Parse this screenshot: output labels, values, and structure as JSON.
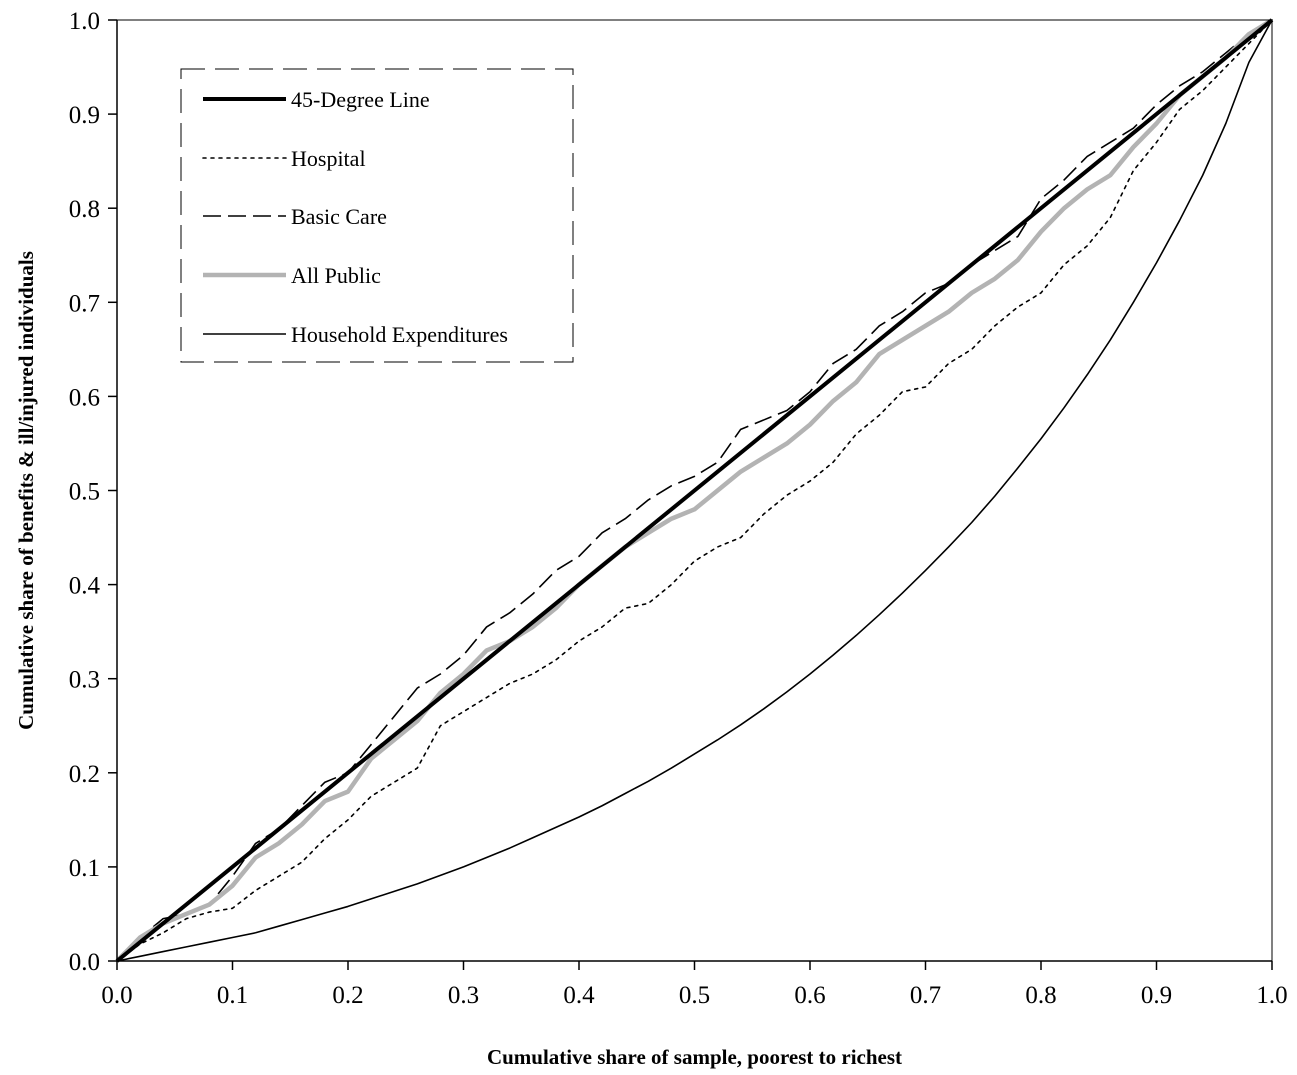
{
  "chart_data": {
    "type": "line",
    "title": "",
    "xlabel": "Cumulative share of sample, poorest to richest",
    "ylabel": "Cumulative share of benefits & ill/injured individuals",
    "xlim": [
      0,
      1
    ],
    "ylim": [
      0,
      1
    ],
    "x_ticks": [
      "0.0",
      "0.1",
      "0.2",
      "0.3",
      "0.4",
      "0.5",
      "0.6",
      "0.7",
      "0.8",
      "0.9",
      "1.0"
    ],
    "y_ticks": [
      "0.0",
      "0.1",
      "0.2",
      "0.3",
      "0.4",
      "0.5",
      "0.6",
      "0.7",
      "0.8",
      "0.9",
      "1.0"
    ],
    "grid": false,
    "legend_position": "top-left",
    "series": [
      {
        "name": "45-Degree Line",
        "style": "solid-thick",
        "color": "#000000",
        "x": [
          0,
          1
        ],
        "y": [
          0,
          1
        ]
      },
      {
        "name": "Hospital",
        "style": "dotted",
        "color": "#000000",
        "x": [
          0,
          0.02,
          0.04,
          0.06,
          0.08,
          0.1,
          0.12,
          0.14,
          0.16,
          0.18,
          0.2,
          0.22,
          0.24,
          0.26,
          0.28,
          0.3,
          0.32,
          0.34,
          0.36,
          0.38,
          0.4,
          0.42,
          0.44,
          0.46,
          0.48,
          0.5,
          0.52,
          0.54,
          0.56,
          0.58,
          0.6,
          0.62,
          0.64,
          0.66,
          0.68,
          0.7,
          0.72,
          0.74,
          0.76,
          0.78,
          0.8,
          0.82,
          0.84,
          0.86,
          0.88,
          0.9,
          0.92,
          0.94,
          0.96,
          0.98,
          1.0
        ],
        "y": [
          0,
          0.018,
          0.03,
          0.045,
          0.052,
          0.056,
          0.075,
          0.09,
          0.105,
          0.13,
          0.15,
          0.175,
          0.19,
          0.205,
          0.25,
          0.265,
          0.28,
          0.295,
          0.305,
          0.32,
          0.34,
          0.355,
          0.375,
          0.38,
          0.4,
          0.425,
          0.44,
          0.45,
          0.475,
          0.495,
          0.51,
          0.53,
          0.56,
          0.58,
          0.605,
          0.61,
          0.635,
          0.65,
          0.675,
          0.695,
          0.71,
          0.74,
          0.76,
          0.79,
          0.84,
          0.87,
          0.905,
          0.925,
          0.95,
          0.975,
          1.0
        ]
      },
      {
        "name": "Basic Care",
        "style": "dashed",
        "color": "#000000",
        "x": [
          0,
          0.02,
          0.04,
          0.06,
          0.08,
          0.1,
          0.12,
          0.14,
          0.16,
          0.18,
          0.2,
          0.22,
          0.24,
          0.26,
          0.28,
          0.3,
          0.32,
          0.34,
          0.36,
          0.38,
          0.4,
          0.42,
          0.44,
          0.46,
          0.48,
          0.5,
          0.52,
          0.54,
          0.56,
          0.58,
          0.6,
          0.62,
          0.64,
          0.66,
          0.68,
          0.7,
          0.72,
          0.74,
          0.76,
          0.78,
          0.8,
          0.82,
          0.84,
          0.86,
          0.88,
          0.9,
          0.92,
          0.94,
          0.96,
          0.98,
          1.0
        ],
        "y": [
          0,
          0.025,
          0.045,
          0.05,
          0.06,
          0.09,
          0.125,
          0.14,
          0.165,
          0.19,
          0.2,
          0.23,
          0.26,
          0.29,
          0.305,
          0.325,
          0.355,
          0.37,
          0.39,
          0.415,
          0.43,
          0.455,
          0.47,
          0.49,
          0.505,
          0.515,
          0.53,
          0.565,
          0.575,
          0.585,
          0.605,
          0.635,
          0.65,
          0.675,
          0.69,
          0.71,
          0.72,
          0.74,
          0.755,
          0.77,
          0.81,
          0.83,
          0.855,
          0.87,
          0.885,
          0.91,
          0.93,
          0.945,
          0.965,
          0.985,
          1.0
        ]
      },
      {
        "name": "All Public",
        "style": "solid-gray-thick",
        "color": "#b3b3b3",
        "x": [
          0,
          0.02,
          0.04,
          0.06,
          0.08,
          0.1,
          0.12,
          0.14,
          0.16,
          0.18,
          0.2,
          0.22,
          0.24,
          0.26,
          0.28,
          0.3,
          0.32,
          0.34,
          0.36,
          0.38,
          0.4,
          0.42,
          0.44,
          0.46,
          0.48,
          0.5,
          0.52,
          0.54,
          0.56,
          0.58,
          0.6,
          0.62,
          0.64,
          0.66,
          0.68,
          0.7,
          0.72,
          0.74,
          0.76,
          0.78,
          0.8,
          0.82,
          0.84,
          0.86,
          0.88,
          0.9,
          0.92,
          0.94,
          0.96,
          0.98,
          1.0
        ],
        "y": [
          0,
          0.025,
          0.04,
          0.05,
          0.06,
          0.08,
          0.11,
          0.125,
          0.145,
          0.17,
          0.18,
          0.215,
          0.235,
          0.255,
          0.285,
          0.305,
          0.33,
          0.34,
          0.355,
          0.375,
          0.4,
          0.42,
          0.44,
          0.455,
          0.47,
          0.48,
          0.5,
          0.52,
          0.535,
          0.55,
          0.57,
          0.595,
          0.615,
          0.645,
          0.66,
          0.675,
          0.69,
          0.71,
          0.725,
          0.745,
          0.775,
          0.8,
          0.82,
          0.835,
          0.865,
          0.89,
          0.92,
          0.94,
          0.96,
          0.985,
          1.0
        ]
      },
      {
        "name": "Household Expenditures",
        "style": "solid-thin",
        "color": "#000000",
        "x": [
          0,
          0.02,
          0.04,
          0.06,
          0.08,
          0.1,
          0.12,
          0.14,
          0.16,
          0.18,
          0.2,
          0.22,
          0.24,
          0.26,
          0.28,
          0.3,
          0.32,
          0.34,
          0.36,
          0.38,
          0.4,
          0.42,
          0.44,
          0.46,
          0.48,
          0.5,
          0.52,
          0.54,
          0.56,
          0.58,
          0.6,
          0.62,
          0.64,
          0.66,
          0.68,
          0.7,
          0.72,
          0.74,
          0.76,
          0.78,
          0.8,
          0.82,
          0.84,
          0.86,
          0.88,
          0.9,
          0.92,
          0.94,
          0.96,
          0.98,
          1.0
        ],
        "y": [
          0,
          0.005,
          0.01,
          0.015,
          0.02,
          0.025,
          0.03,
          0.037,
          0.044,
          0.051,
          0.058,
          0.066,
          0.074,
          0.082,
          0.091,
          0.1,
          0.11,
          0.12,
          0.131,
          0.142,
          0.153,
          0.165,
          0.178,
          0.191,
          0.205,
          0.22,
          0.235,
          0.251,
          0.268,
          0.286,
          0.305,
          0.325,
          0.346,
          0.368,
          0.391,
          0.415,
          0.44,
          0.466,
          0.494,
          0.524,
          0.555,
          0.588,
          0.623,
          0.66,
          0.7,
          0.742,
          0.787,
          0.835,
          0.89,
          0.955,
          1.0
        ]
      }
    ]
  }
}
